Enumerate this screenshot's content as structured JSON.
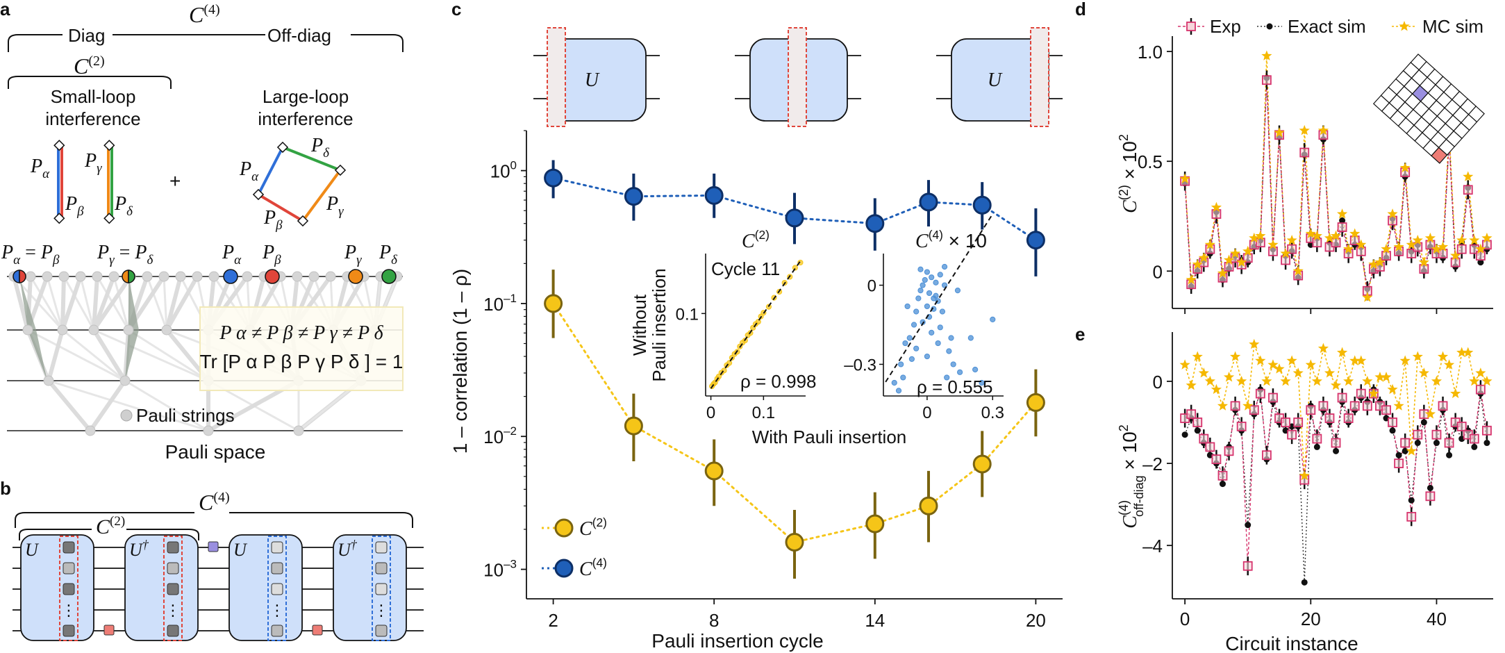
{
  "panel_a": {
    "label": "a",
    "c4": "C",
    "c4_sup": "(4)",
    "diag": "Diag",
    "offdiag": "Off-diag",
    "c2": "C",
    "c2_sup": "(2)",
    "small_loop": [
      "Small-loop",
      "interference"
    ],
    "large_loop": [
      "Large-loop",
      "interference"
    ],
    "plus": "+",
    "p_alpha": "P",
    "sub_alpha": "α",
    "sub_beta": "β",
    "sub_gamma": "γ",
    "sub_delta": "δ",
    "eq_ab": "=",
    "neq_line": "P α ≠ P β ≠ P γ ≠ P δ",
    "tr_line": "Tr [P α P β P γ P δ ] = 1",
    "pauli_strings": "Pauli strings",
    "pauli_space": "Pauli space"
  },
  "panel_b": {
    "label": "b",
    "c4": "C",
    "c4_sup": "(4)",
    "c2": "C",
    "c2_sup": "(2)",
    "u": "U",
    "udag": "U",
    "dag": "†",
    "dots": "⋮"
  },
  "panel_c": {
    "label": "c",
    "u": "U",
    "ylabel": "1 – correlation (1 – ρ)",
    "xlabel": "Pauli insertion cycle",
    "xticks": [
      "2",
      "8",
      "14",
      "20"
    ],
    "yticks": [
      {
        "base": "10",
        "exp": "0"
      },
      {
        "base": "10",
        "exp": "–1"
      },
      {
        "base": "10",
        "exp": "–2"
      },
      {
        "base": "10",
        "exp": "–3"
      }
    ],
    "legend": [
      {
        "text": "C",
        "sup": "(2)"
      },
      {
        "text": "C",
        "sup": "(4)"
      }
    ],
    "inset1": {
      "title": "C",
      "title_sup": "(2)",
      "cycle": "Cycle 11",
      "rho": "ρ = 0.998",
      "yticks": [
        "0.1"
      ],
      "xticks": [
        "0",
        "0.1"
      ]
    },
    "inset2": {
      "title": "C",
      "title_sup": "(4)",
      "title_suffix": " × 10",
      "rho": "ρ = 0.555",
      "yticks": [
        "0",
        "–0.3"
      ],
      "xticks": [
        "0",
        "0.3"
      ]
    },
    "inset_ylabel": [
      "Without",
      "Pauli insertion"
    ],
    "inset_xlabel": "With Pauli insertion"
  },
  "panel_d": {
    "label": "d",
    "legend": [
      "Exp",
      "Exact sim",
      "MC sim"
    ],
    "ylabel_main": "C",
    "ylabel_sup": "(2)",
    "ylabel_suffix": " × 10",
    "ylabel_exp": "2",
    "yticks": [
      "1.0",
      "0.5",
      "0"
    ]
  },
  "panel_e": {
    "label": "e",
    "ylabel_main": "C",
    "ylabel_sup": "(4)",
    "ylabel_sub": "off-diag",
    "ylabel_suffix": " × 10",
    "ylabel_exp": "2",
    "yticks": [
      "0",
      "–2",
      "–4"
    ],
    "xticks": [
      "0",
      "20",
      "40"
    ],
    "xlabel": "Circuit instance"
  },
  "chart_data": [
    {
      "type": "line",
      "panel": "c",
      "x": [
        2,
        5,
        8,
        11,
        14,
        16,
        18,
        20
      ],
      "yscale": "log",
      "ylim": [
        0.0006,
        2
      ],
      "series": [
        {
          "name": "C(2)",
          "color": "#f5c518",
          "values": [
            0.1,
            0.012,
            0.0055,
            0.0016,
            0.0022,
            0.003,
            0.0062,
            0.018
          ],
          "err_low": [
            0.055,
            0.0065,
            0.003,
            0.00085,
            0.0012,
            0.0016,
            0.0035,
            0.01
          ],
          "err_high": [
            0.18,
            0.021,
            0.0095,
            0.0028,
            0.0038,
            0.0055,
            0.011,
            0.032
          ]
        },
        {
          "name": "C(4)",
          "color": "#1f4e99",
          "values": [
            0.88,
            0.64,
            0.65,
            0.44,
            0.4,
            0.58,
            0.55,
            0.3
          ],
          "err_low": [
            0.62,
            0.42,
            0.44,
            0.28,
            0.25,
            0.38,
            0.36,
            0.16
          ],
          "err_high": [
            1.2,
            0.95,
            0.95,
            0.68,
            0.62,
            0.85,
            0.82,
            0.52
          ]
        }
      ]
    },
    {
      "type": "scatter",
      "panel": "c-inset-1",
      "xlim": [
        -0.01,
        0.18
      ],
      "ylim": [
        -0.01,
        0.18
      ],
      "x": [
        0.002,
        0.005,
        0.008,
        0.012,
        0.015,
        0.02,
        0.025,
        0.03,
        0.035,
        0.04,
        0.045,
        0.05,
        0.055,
        0.06,
        0.065,
        0.07,
        0.075,
        0.08,
        0.085,
        0.09,
        0.095,
        0.1,
        0.11,
        0.12,
        0.13,
        0.14,
        0.15,
        0.16,
        0.17
      ],
      "y": [
        0.003,
        0.006,
        0.008,
        0.013,
        0.016,
        0.021,
        0.024,
        0.031,
        0.034,
        0.041,
        0.046,
        0.049,
        0.056,
        0.061,
        0.064,
        0.071,
        0.074,
        0.081,
        0.086,
        0.089,
        0.096,
        0.101,
        0.109,
        0.121,
        0.129,
        0.141,
        0.149,
        0.161,
        0.168
      ]
    },
    {
      "type": "scatter",
      "panel": "c-inset-2",
      "xlim": [
        -0.2,
        0.35
      ],
      "ylim": [
        -0.42,
        0.12
      ],
      "x": [
        -0.15,
        -0.12,
        -0.1,
        -0.08,
        -0.06,
        -0.05,
        -0.04,
        -0.03,
        -0.02,
        -0.01,
        0.0,
        0.0,
        0.01,
        0.02,
        0.02,
        0.03,
        0.04,
        0.05,
        0.06,
        0.07,
        0.08,
        0.1,
        0.12,
        0.15,
        0.2,
        0.25,
        0.3,
        -0.07,
        -0.03,
        0.01,
        0.05,
        0.09,
        -0.11,
        -0.05,
        0.03,
        0.06,
        0.0,
        -0.02,
        0.04,
        0.08,
        0.11,
        -0.09,
        0.14,
        0.22,
        -0.13
      ],
      "y": [
        -0.37,
        -0.3,
        -0.22,
        -0.2,
        -0.15,
        -0.1,
        -0.05,
        -0.02,
        0.0,
        0.02,
        0.05,
        -0.08,
        -0.12,
        0.03,
        -0.18,
        -0.05,
        0.01,
        -0.22,
        0.04,
        -0.1,
        0.07,
        -0.25,
        -0.3,
        -0.33,
        -0.2,
        -0.37,
        -0.13,
        -0.28,
        0.06,
        -0.03,
        -0.06,
        -0.35,
        -0.35,
        -0.24,
        -0.09,
        -0.16,
        -0.27,
        -0.14,
        -0.04,
        0.0,
        -0.2,
        -0.08,
        -0.02,
        -0.32,
        -0.4
      ]
    },
    {
      "type": "line",
      "panel": "d",
      "xlim": [
        -2,
        49
      ],
      "ylim": [
        -0.17,
        1.07
      ],
      "x": [
        0,
        1,
        2,
        3,
        4,
        5,
        6,
        7,
        8,
        9,
        10,
        11,
        12,
        13,
        14,
        15,
        16,
        17,
        18,
        19,
        20,
        21,
        22,
        23,
        24,
        25,
        26,
        27,
        28,
        29,
        30,
        31,
        32,
        33,
        34,
        35,
        36,
        37,
        38,
        39,
        40,
        41,
        42,
        43,
        44,
        45,
        46,
        47,
        48
      ],
      "series": [
        {
          "name": "Exp",
          "color": "#d6336c",
          "values": [
            0.41,
            -0.06,
            0.01,
            0.04,
            0.1,
            0.26,
            -0.03,
            0.02,
            0.06,
            0.03,
            0.06,
            0.12,
            0.13,
            0.87,
            0.09,
            0.62,
            0.05,
            0.1,
            -0.02,
            0.54,
            0.15,
            0.13,
            0.62,
            0.11,
            0.13,
            0.2,
            0.08,
            0.14,
            0.09,
            -0.09,
            0.01,
            0.02,
            0.07,
            0.23,
            0.09,
            0.45,
            0.08,
            0.11,
            0.01,
            0.12,
            0.08,
            0.08,
            0.59,
            0.04,
            0.1,
            0.37,
            0.1,
            0.07,
            0.12
          ]
        },
        {
          "name": "Exact sim",
          "color": "#111111",
          "values": [
            0.4,
            -0.07,
            0.0,
            0.05,
            0.08,
            0.27,
            -0.04,
            0.01,
            0.07,
            0.05,
            0.04,
            0.11,
            0.14,
            0.88,
            0.1,
            0.61,
            0.07,
            0.09,
            -0.03,
            0.53,
            0.12,
            0.15,
            0.6,
            0.13,
            0.12,
            0.23,
            0.09,
            0.12,
            0.11,
            -0.08,
            0.0,
            0.03,
            0.06,
            0.24,
            0.08,
            0.43,
            0.09,
            0.12,
            0.0,
            0.11,
            0.09,
            0.06,
            0.6,
            0.02,
            0.13,
            0.38,
            0.12,
            0.04,
            0.1
          ]
        },
        {
          "name": "MC sim",
          "color": "#f5b800",
          "values": [
            0.42,
            -0.04,
            0.03,
            0.06,
            0.12,
            0.29,
            -0.01,
            0.05,
            0.08,
            0.04,
            0.09,
            0.15,
            0.16,
            0.98,
            0.12,
            0.63,
            0.08,
            0.14,
            0.0,
            0.64,
            0.17,
            0.16,
            0.64,
            0.15,
            0.16,
            0.26,
            0.1,
            0.17,
            0.12,
            -0.12,
            0.03,
            0.04,
            0.1,
            0.26,
            0.11,
            0.47,
            0.12,
            0.14,
            0.04,
            0.15,
            0.1,
            0.11,
            0.64,
            0.07,
            0.14,
            0.43,
            0.14,
            0.1,
            0.15
          ]
        }
      ]
    },
    {
      "type": "line",
      "panel": "e",
      "xlim": [
        -2,
        49
      ],
      "ylim": [
        -5.3,
        1.2
      ],
      "x": [
        0,
        1,
        2,
        3,
        4,
        5,
        6,
        7,
        8,
        9,
        10,
        11,
        12,
        13,
        14,
        15,
        16,
        17,
        18,
        19,
        20,
        21,
        22,
        23,
        24,
        25,
        26,
        27,
        28,
        29,
        30,
        31,
        32,
        33,
        34,
        35,
        36,
        37,
        38,
        39,
        40,
        41,
        42,
        43,
        44,
        45,
        46,
        47,
        48
      ],
      "series": [
        {
          "name": "Exp",
          "color": "#d6336c",
          "values": [
            -0.9,
            -0.8,
            -1.0,
            -1.4,
            -1.6,
            -1.9,
            -2.3,
            -1.7,
            -0.6,
            -1.1,
            -4.5,
            -0.7,
            -0.3,
            -1.8,
            -0.4,
            -0.9,
            -1.0,
            -1.3,
            -1.0,
            -2.4,
            -0.7,
            -1.4,
            -0.6,
            -0.9,
            -1.5,
            -0.4,
            -0.9,
            -0.6,
            -0.3,
            -0.6,
            -0.3,
            -0.6,
            -0.7,
            -1.0,
            -2.0,
            -1.5,
            -3.3,
            -1.3,
            -0.8,
            -2.8,
            -1.3,
            -0.6,
            -1.5,
            -1.0,
            -1.1,
            -1.3,
            -1.4,
            -0.2,
            -1.2
          ]
        },
        {
          "name": "Exact sim",
          "color": "#111111",
          "values": [
            -1.3,
            -0.9,
            -1.2,
            -1.5,
            -1.8,
            -2.0,
            -2.5,
            -1.6,
            -0.7,
            -1.2,
            -3.5,
            -0.8,
            -0.2,
            -1.9,
            -0.5,
            -1.0,
            -1.2,
            -1.1,
            -1.1,
            -4.9,
            -0.6,
            -1.6,
            -0.7,
            -1.0,
            -1.7,
            -0.5,
            -1.0,
            -0.7,
            -0.4,
            -0.5,
            -0.2,
            -0.5,
            -0.9,
            -1.2,
            -1.8,
            -1.7,
            -2.9,
            -1.5,
            -1.0,
            -2.6,
            -1.5,
            -0.7,
            -1.8,
            -1.1,
            -1.4,
            -1.2,
            -1.6,
            -0.3,
            -1.5
          ]
        },
        {
          "name": "MC sim",
          "color": "#f5b800",
          "values": [
            0.4,
            -0.1,
            0.6,
            0.2,
            0.0,
            -0.2,
            -0.6,
            0.1,
            0.6,
            0.0,
            -0.6,
            0.9,
            0.5,
            0.0,
            0.4,
            0.3,
            0.0,
            0.5,
            0.2,
            -2.3,
            0.4,
            0.0,
            0.8,
            0.2,
            -0.1,
            0.7,
            0.0,
            0.5,
            0.5,
            0.0,
            -0.3,
            0.1,
            0.1,
            -0.2,
            -0.6,
            0.5,
            -1.7,
            0.6,
            0.2,
            -0.8,
            0.0,
            0.6,
            0.4,
            -0.3,
            0.7,
            0.7,
            0.0,
            0.2,
            0.0
          ]
        }
      ]
    }
  ]
}
